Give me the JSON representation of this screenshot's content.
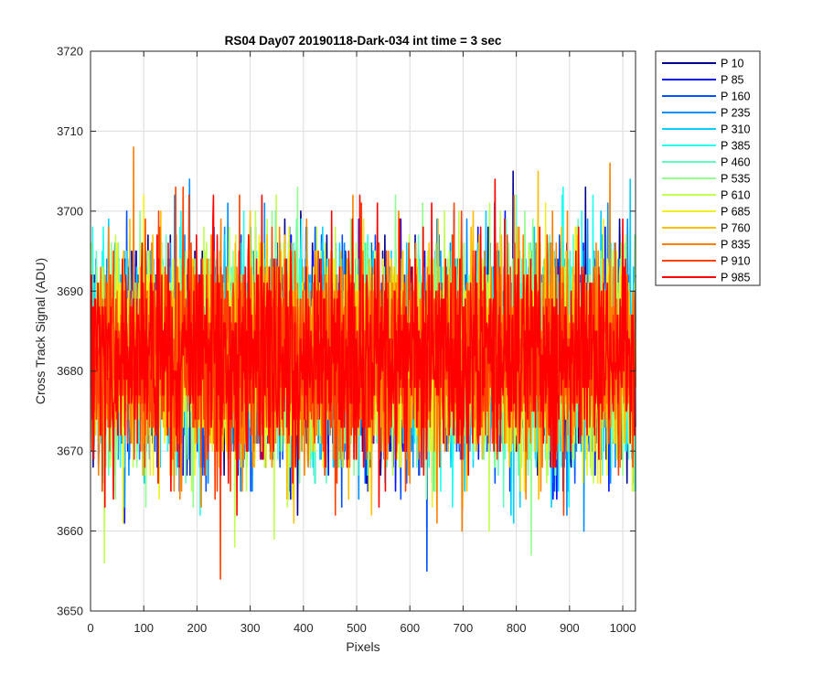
{
  "chart_data": {
    "type": "line",
    "title": "RS04 Day07 20190118-Dark-034 int time = 3 sec",
    "xlabel": "Pixels",
    "ylabel": "Cross Track Signal (ADU)",
    "xlim": [
      0,
      1024
    ],
    "ylim": [
      3650,
      3720
    ],
    "xticks": [
      0,
      100,
      200,
      300,
      400,
      500,
      600,
      700,
      800,
      900,
      1000
    ],
    "yticks": [
      3650,
      3660,
      3670,
      3680,
      3690,
      3700,
      3710,
      3720
    ],
    "grid": true,
    "legend_location": "outside-top-right",
    "x_start": 1,
    "n_points": 1024,
    "noise": {
      "mean": 3682,
      "std_dev": 6.5,
      "min": 3653,
      "max": 3711
    },
    "series": [
      {
        "name": "P 10",
        "color": "#00008F"
      },
      {
        "name": "P 85",
        "color": "#0010FF"
      },
      {
        "name": "P 160",
        "color": "#0050FF"
      },
      {
        "name": "P 235",
        "color": "#008FFF"
      },
      {
        "name": "P 310",
        "color": "#00CFFF"
      },
      {
        "name": "P 385",
        "color": "#20FFF0"
      },
      {
        "name": "P 460",
        "color": "#5FFFC0"
      },
      {
        "name": "P 535",
        "color": "#90FF90"
      },
      {
        "name": "P 610",
        "color": "#C0FF50"
      },
      {
        "name": "P 685",
        "color": "#F0F020"
      },
      {
        "name": "P 760",
        "color": "#FFBF00"
      },
      {
        "name": "P 835",
        "color": "#FF8000"
      },
      {
        "name": "P 910",
        "color": "#FF4000"
      },
      {
        "name": "P 985",
        "color": "#FF0000"
      }
    ]
  }
}
